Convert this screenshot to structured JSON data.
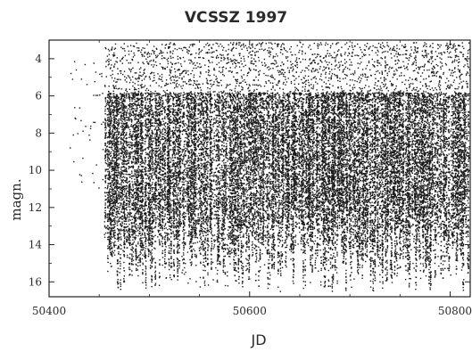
{
  "chart_data": {
    "type": "scatter",
    "title": "VCSSZ 1997",
    "xlabel": "JD",
    "ylabel": "magn.",
    "xlim": [
      50400,
      50820
    ],
    "ylim": [
      16.8,
      3.0
    ],
    "y_inverted": true,
    "x_ticks": [
      50400,
      50600,
      50800
    ],
    "y_ticks": [
      4,
      6,
      8,
      10,
      12,
      14,
      16
    ],
    "grid": false,
    "legend": "none",
    "series": [
      {
        "marker_color": "#1a1a1a",
        "points_sample": [
          [
            50425,
            6.6
          ],
          [
            50426,
            7.2
          ],
          [
            50428,
            8.0
          ],
          [
            50430,
            10.2
          ],
          [
            50432,
            10.6
          ],
          [
            50445,
            5.2
          ],
          [
            50450,
            4.8
          ],
          [
            50458,
            15.4
          ],
          [
            50462,
            6.2
          ],
          [
            50466,
            14.0
          ],
          [
            50480,
            8.0
          ],
          [
            50500,
            12.0
          ],
          [
            50520,
            15.6
          ],
          [
            50540,
            15.8
          ],
          [
            50560,
            10.0
          ],
          [
            50580,
            15.0
          ],
          [
            50600,
            6.2
          ],
          [
            50620,
            15.6
          ],
          [
            50640,
            9.0
          ],
          [
            50660,
            16.0
          ],
          [
            50680,
            16.2
          ],
          [
            50700,
            7.0
          ],
          [
            50720,
            14.8
          ],
          [
            50740,
            11.0
          ],
          [
            50760,
            15.8
          ],
          [
            50780,
            13.0
          ],
          [
            50800,
            15.6
          ],
          [
            50815,
            12.0
          ]
        ]
      }
    ]
  }
}
